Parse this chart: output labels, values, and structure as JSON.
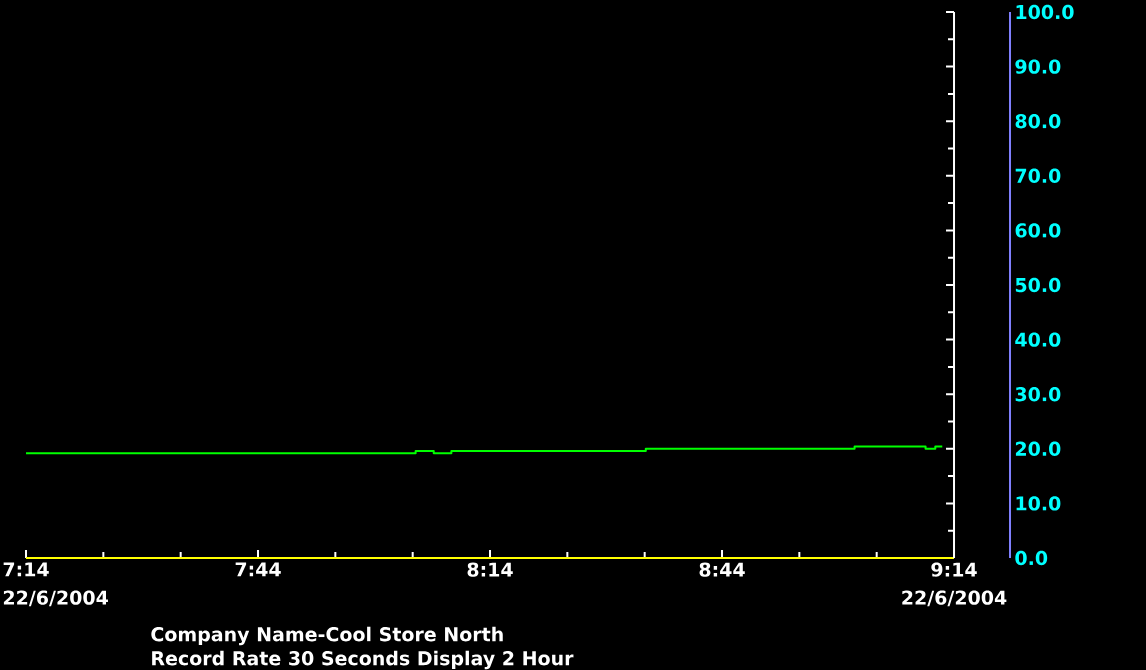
{
  "chart_data": {
    "type": "step",
    "x": [
      7.2333,
      8.073,
      8.112,
      8.15,
      8.569,
      9.019,
      9.172,
      9.193,
      9.208
    ],
    "series": [
      {
        "color": "#00ff00",
        "values": [
          19.2,
          19.6,
          19.2,
          19.6,
          20.0,
          20.4,
          20.0,
          20.4,
          20.4
        ]
      }
    ],
    "xlim": [
      7.2333,
      9.2333
    ],
    "xticks": [
      {
        "value": 7.2333,
        "label": "7:14"
      },
      {
        "value": 7.7333,
        "label": "7:44"
      },
      {
        "value": 8.2333,
        "label": "8:14"
      },
      {
        "value": 8.7333,
        "label": "8:44"
      },
      {
        "value": 9.2333,
        "label": "9:14"
      }
    ],
    "ylim": [
      0,
      100
    ],
    "yticks": [
      {
        "value": 0,
        "label": "0.0"
      },
      {
        "value": 10,
        "label": "10.0"
      },
      {
        "value": 20,
        "label": "20.0"
      },
      {
        "value": 30,
        "label": "30.0"
      },
      {
        "value": 40,
        "label": "40.0"
      },
      {
        "value": 50,
        "label": "50.0"
      },
      {
        "value": 60,
        "label": "60.0"
      },
      {
        "value": 70,
        "label": "70.0"
      },
      {
        "value": 80,
        "label": "80.0"
      },
      {
        "value": 90,
        "label": "90.0"
      },
      {
        "value": 100,
        "label": "100.0"
      }
    ],
    "annotations": [
      "22/6/2004",
      "22/6/2004",
      "Company Name-Cool Store North",
      "Record Rate 30 Seconds Display 2 Hour"
    ]
  }
}
